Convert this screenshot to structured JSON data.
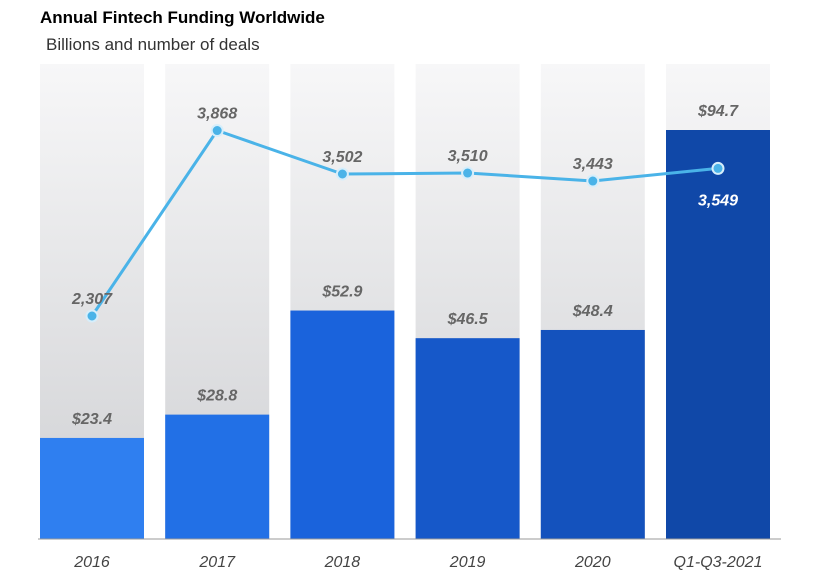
{
  "title": "Annual Fintech Funding Worldwide",
  "subtitle": "Billions and number of deals",
  "colors": {
    "line": "#4ab3e8",
    "bars": [
      "#2f7ff0",
      "#2270e6",
      "#1a63dc",
      "#1658c9",
      "#1452bd",
      "#1048a8"
    ],
    "track": "#e6e6e8",
    "label": "#666666"
  },
  "chart_data": {
    "type": "bar",
    "title": "Annual Fintech Funding Worldwide",
    "subtitle": "Billions and number of deals",
    "categories": [
      "2016",
      "2017",
      "2018",
      "2019",
      "2020",
      "Q1-Q3-2021"
    ],
    "series": [
      {
        "type": "bar",
        "values": [
          23.4,
          28.8,
          52.9,
          46.5,
          48.4,
          94.7
        ],
        "labels": [
          "$23.4",
          "$28.8",
          "$52.9",
          "$46.5",
          "$48.4",
          "$94.7"
        ]
      },
      {
        "type": "line",
        "values": [
          2307,
          3868,
          3502,
          3510,
          3443,
          3549
        ],
        "labels": [
          "2,307",
          "3,868",
          "3,502",
          "3,510",
          "3,443",
          "3,549"
        ]
      }
    ],
    "ylim": [
      0,
      100
    ],
    "grid": false,
    "legend": "none"
  }
}
